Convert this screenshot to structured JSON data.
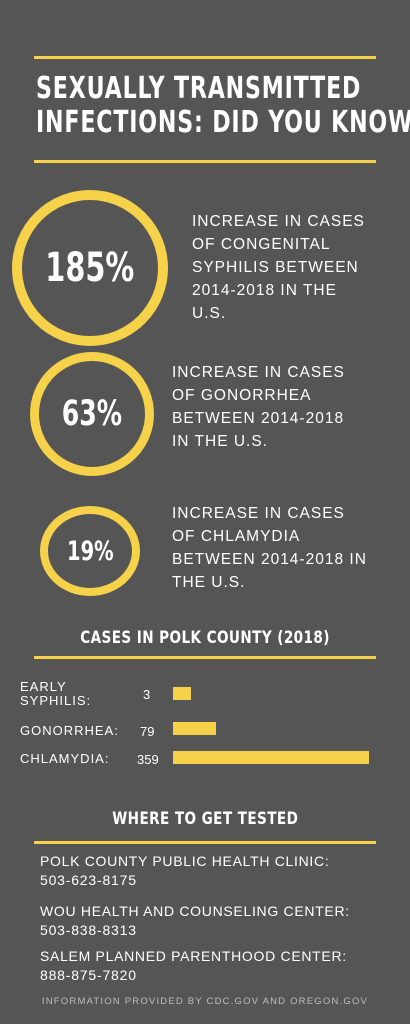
{
  "title": {
    "line1": "SEXUALLY TRANSMITTED",
    "line2": "INFECTIONS: DID YOU KNOW"
  },
  "stats": [
    {
      "value": "185%",
      "text": "INCREASE IN CASES\nOF CONGENITAL\nSYPHILIS BETWEEN\n2014-2018 IN THE\nU.S."
    },
    {
      "value": "63%",
      "text": "INCREASE IN CASES\nOF GONORRHEA\n BETWEEN 2014-2018\nIN THE U.S."
    },
    {
      "value": "19%",
      "text": "INCREASE IN CASES\nOF CHLAMYDIA\nBETWEEN 2014-2018 IN\nTHE U.S."
    }
  ],
  "cases_heading": "CASES IN POLK COUNTY (2018)",
  "chart_data": {
    "type": "bar",
    "categories": [
      "EARLY SYPHILIS:",
      "GONORRHEA:",
      "CHLAMYDIA:"
    ],
    "values": [
      3,
      79,
      359
    ],
    "value_labels": [
      "3",
      "79",
      "359"
    ],
    "title": "CASES IN POLK COUNTY (2018)",
    "orientation": "horizontal"
  },
  "testing_heading": "WHERE TO GET TESTED",
  "locations": [
    {
      "name": "POLK COUNTY PUBLIC HEALTH CLINIC:",
      "phone": "503-623-8175"
    },
    {
      "name": "WOU HEALTH AND COUNSELING CENTER:",
      "phone": "503-838-8313"
    },
    {
      "name": "SALEM PLANNED PARENTHOOD CENTER:",
      "phone": "888-875-7820"
    }
  ],
  "footer": "INFORMATION PROVIDED BY CDC.GOV AND OREGON.GOV",
  "colors": {
    "background": "#555555",
    "accent": "#f5d24a",
    "text": "#ffffff"
  }
}
